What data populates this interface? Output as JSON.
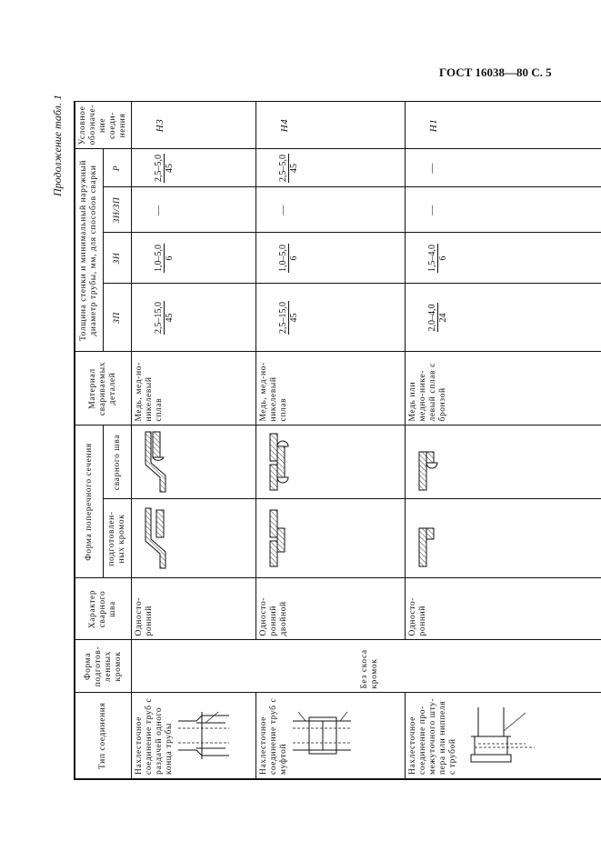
{
  "page_header": "ГОСТ 16038—80 С. 5",
  "continuation": "Продолжение табл. 1",
  "table": {
    "headers": {
      "joint_type": "Тип соединения",
      "edge_form": "Форма подготов-ленных кромок",
      "weld_character": "Характер сварного шва",
      "cross_section": "Форма поперечного сечения",
      "cross_section_prepared": "подготовлен-ных кромок",
      "cross_section_weld": "сварного шва",
      "material": "Материал свариваемых деталей",
      "thickness": "Толщина стенки и минимальный наружный диаметр трубы, мм, для способов сварки",
      "method_zp": "ЗП",
      "method_zn": "ЗН",
      "method_znzp": "ЗН/ЗП",
      "method_r": "Р",
      "designation": "Условное обозначе-ние соеди-нения"
    },
    "edge_form_merged": "Без скоса кромок",
    "rows": [
      {
        "joint_type": "Нахлесточное соединение труб с раздачей одного конца трубы",
        "weld_character": "Односто-ронний",
        "material": "Медь, мед-но-никелевый сплав",
        "zp": {
          "num": "2,5–15,0",
          "den": "45"
        },
        "zn": {
          "num": "1,0–5,0",
          "den": "6"
        },
        "znzp": "—",
        "r": {
          "num": "2,5–5,0",
          "den": "45"
        },
        "designation": "Н3"
      },
      {
        "joint_type": "Нахлесточное соединение труб с муфтой",
        "weld_character": "Односто-ронний двойной",
        "material": "Медь, мед-но-никелевый сплав",
        "zp": {
          "num": "2,5–15,0",
          "den": "45"
        },
        "zn": {
          "num": "1,0–5,0",
          "den": "6"
        },
        "znzp": "—",
        "r": {
          "num": "2,5–5,0",
          "den": "45"
        },
        "designation": "Н4"
      },
      {
        "joint_type": "Нахлесточное соединение про-межуточного шту-пера или ниппеля с трубой",
        "weld_character": "Односто-ронний",
        "material": "Медь или медно-нике-левый сплав с бронзой",
        "zp": {
          "num": "2,0–4,0",
          "den": "24"
        },
        "zn": {
          "num": "1,5–4,0",
          "den": "6"
        },
        "znzp": "—",
        "r": "—",
        "designation": "Н1"
      }
    ]
  }
}
